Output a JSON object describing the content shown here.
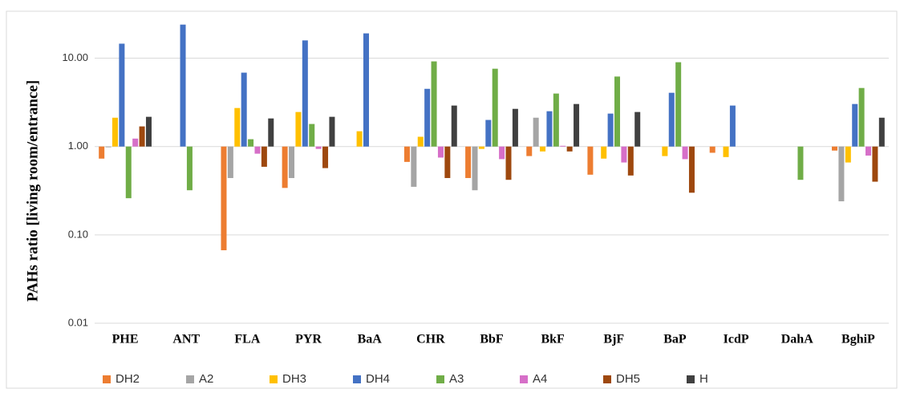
{
  "chart_data": {
    "type": "bar",
    "log_scale": true,
    "baseline": 1,
    "y_label": "PAHs ratio [living room/entrance]",
    "categories": [
      "PHE",
      "ANT",
      "FLA",
      "PYR",
      "BaA",
      "CHR",
      "BbF",
      "BkF",
      "BjF",
      "BaP",
      "IcdP",
      "DahA",
      "BghiP"
    ],
    "series": [
      {
        "name": "DH2",
        "color": "#ed7d31",
        "values": [
          0.73,
          null,
          0.067,
          0.34,
          null,
          0.67,
          0.44,
          0.78,
          0.48,
          null,
          0.85,
          null,
          0.9
        ]
      },
      {
        "name": "A2",
        "color": "#a5a5a5",
        "values": [
          0.98,
          null,
          0.44,
          0.44,
          null,
          0.35,
          0.32,
          2.12,
          null,
          null,
          null,
          null,
          0.24
        ]
      },
      {
        "name": "DH3",
        "color": "#ffc000",
        "values": [
          2.12,
          null,
          2.73,
          2.46,
          1.49,
          1.29,
          0.94,
          0.88,
          0.73,
          0.78,
          0.76,
          null,
          0.66
        ]
      },
      {
        "name": "DH4",
        "color": "#4472c4",
        "values": [
          14.6,
          24,
          6.86,
          15.9,
          19.1,
          4.5,
          2.0,
          2.51,
          2.36,
          4.06,
          2.91,
          null,
          3.03
        ]
      },
      {
        "name": "A3",
        "color": "#70ad47",
        "values": [
          0.26,
          0.32,
          1.21,
          1.8,
          null,
          9.2,
          7.6,
          3.98,
          6.2,
          9.0,
          null,
          0.42,
          4.6
        ]
      },
      {
        "name": "A4",
        "color": "#d66fc8",
        "values": [
          1.23,
          null,
          0.83,
          0.94,
          null,
          0.75,
          0.72,
          1.02,
          0.66,
          0.72,
          null,
          null,
          0.79
        ]
      },
      {
        "name": "DH5",
        "color": "#9e480e",
        "values": [
          1.69,
          null,
          0.59,
          0.57,
          null,
          0.44,
          0.42,
          0.88,
          0.47,
          0.3,
          null,
          null,
          0.4
        ]
      },
      {
        "name": "H",
        "color": "#404040",
        "values": [
          2.17,
          null,
          2.08,
          2.17,
          null,
          2.91,
          2.67,
          3.03,
          2.46,
          null,
          null,
          null,
          2.12
        ]
      }
    ],
    "ylim": [
      0.01,
      30
    ],
    "yticks": [
      0.01,
      {
        "value": 0.1,
        "label": "0.10"
      },
      {
        "value": 1,
        "label": "1.00"
      },
      {
        "value": 10,
        "label": "10.00"
      }
    ],
    "grid": true,
    "legend": "bottom"
  }
}
